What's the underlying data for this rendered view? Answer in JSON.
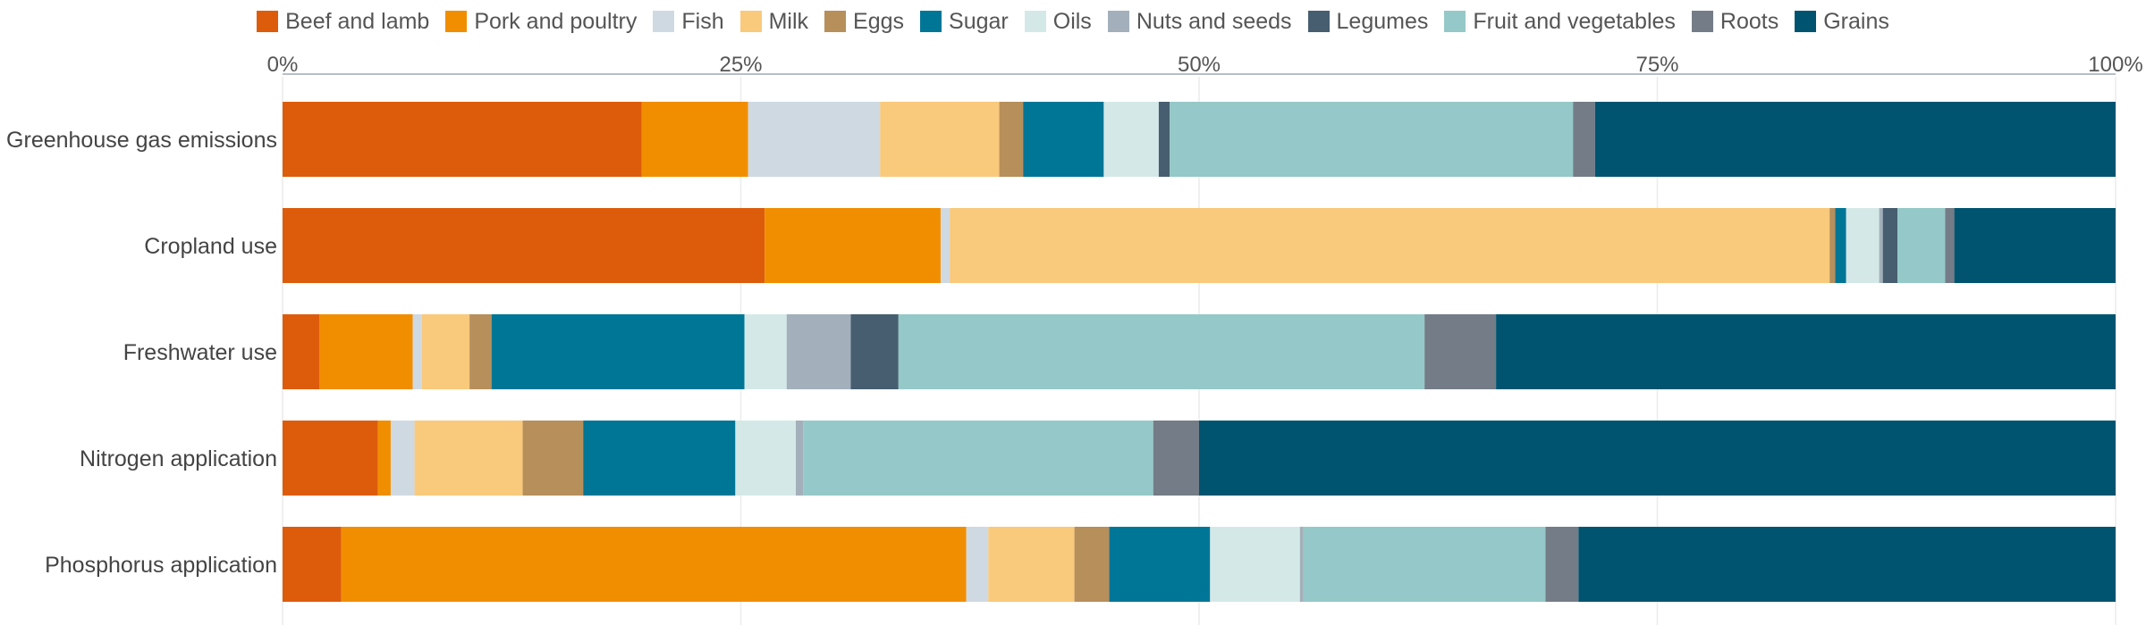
{
  "chart_data": {
    "type": "bar",
    "orientation": "horizontal",
    "stacked": true,
    "percent": true,
    "title": "",
    "xlabel": "",
    "ylabel": "",
    "xlim": [
      0,
      100
    ],
    "x_ticks": [
      "0%",
      "25%",
      "50%",
      "75%",
      "100%"
    ],
    "x_tick_values": [
      0,
      25,
      50,
      75,
      100
    ],
    "grid": true,
    "legend_position": "top",
    "categories": [
      "Greenhouse gas emissions",
      "Cropland use",
      "Freshwater use",
      "Nitrogen application",
      "Phosphorus application"
    ],
    "series": [
      {
        "name": "Beef and lamb",
        "color": "#dd5c0c",
        "values": [
          19.6,
          26.3,
          2.0,
          5.2,
          3.2
        ]
      },
      {
        "name": "Pork and poultry",
        "color": "#f18e00",
        "values": [
          5.8,
          9.6,
          5.1,
          0.7,
          34.1
        ]
      },
      {
        "name": "Fish",
        "color": "#cfd9e2",
        "values": [
          7.2,
          0.5,
          0.5,
          1.3,
          1.2
        ]
      },
      {
        "name": "Milk",
        "color": "#f9c97c",
        "values": [
          6.5,
          48.0,
          2.6,
          5.9,
          4.7
        ]
      },
      {
        "name": "Eggs",
        "color": "#b78f5b",
        "values": [
          1.3,
          0.3,
          1.2,
          3.3,
          1.9
        ]
      },
      {
        "name": "Sugar",
        "color": "#007697",
        "values": [
          4.4,
          0.6,
          13.8,
          8.3,
          5.5
        ]
      },
      {
        "name": "Oils",
        "color": "#d4e9e7",
        "values": [
          3.0,
          1.8,
          2.3,
          3.3,
          4.9
        ]
      },
      {
        "name": "Nuts and seeds",
        "color": "#a3b0bb",
        "values": [
          0.0,
          0.2,
          3.5,
          0.4,
          0.2
        ]
      },
      {
        "name": "Legumes",
        "color": "#475e70",
        "values": [
          0.6,
          0.8,
          2.6,
          0.0,
          0.0
        ]
      },
      {
        "name": "Fruit and vegetables",
        "color": "#95c8c8",
        "values": [
          22.0,
          2.6,
          28.7,
          19.1,
          13.2
        ]
      },
      {
        "name": "Roots",
        "color": "#747c87",
        "values": [
          1.2,
          0.5,
          3.9,
          2.5,
          1.8
        ]
      },
      {
        "name": "Grains",
        "color": "#005470",
        "values": [
          28.4,
          8.8,
          33.8,
          50.0,
          29.3
        ]
      }
    ]
  }
}
